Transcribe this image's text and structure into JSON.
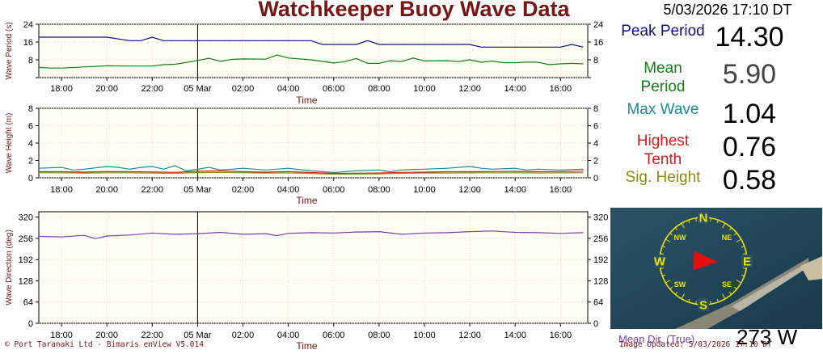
{
  "title": "Watchkeeper Buoy Wave Data",
  "timestamp": "5/03/2026 17:10 DT",
  "readouts": [
    {
      "label": "Peak Period",
      "value": "14.30",
      "color": "#10107a",
      "value_color": "#000000"
    },
    {
      "label": "Mean Period",
      "value": "5.90",
      "color": "#128012",
      "value_color": "#444444"
    },
    {
      "label": "Max Wave",
      "value": "1.04",
      "color": "#1a8c96",
      "value_color": "#000000"
    },
    {
      "label": "Highest Tenth",
      "value": "0.76",
      "color": "#e01818",
      "value_color": "#000000"
    },
    {
      "label": "Sig. Height",
      "value": "0.58",
      "color": "#8a8a16",
      "value_color": "#000000"
    }
  ],
  "compass": {
    "labels": [
      "N",
      "NE",
      "E",
      "SE",
      "S",
      "SW",
      "W",
      "NW"
    ],
    "mean_dir_label": "Mean Dir. (True)",
    "mean_dir_value": "273 W",
    "direction_deg": 273
  },
  "footer": {
    "left": "© Port Taranaki Ltd - Bimaris enView V5.014",
    "right": "Image Updated: 5/03/2026 17:10 DT"
  },
  "colors": {
    "title": "#7b1414",
    "axis_label": "#7b1414",
    "plot_bg": "#fffff4",
    "peak": "#10107a",
    "mean": "#128012",
    "max": "#1a8c96",
    "tenth": "#e01818",
    "sig": "#8a8a16",
    "direction": "#7a3fa8",
    "compass_ring": "#f0e000",
    "compass_arrow": "#e01010"
  },
  "chart_data": [
    {
      "type": "line",
      "ylabel": "Wave Period (s)",
      "xlabel": "Time",
      "ylim": [
        0,
        24
      ],
      "yticks": [
        0,
        8,
        16,
        24
      ],
      "yticks_labeled": [
        8,
        16,
        24
      ],
      "xlim": [
        -7.0,
        17.2
      ],
      "x_ticks": [
        -6,
        -4,
        -2,
        0,
        2,
        4,
        6,
        8,
        10,
        12,
        14,
        16
      ],
      "x_tick_labels": [
        "18:00",
        "20:00",
        "22:00",
        "05 Mar",
        "02:00",
        "04:00",
        "06:00",
        "08:00",
        "10:00",
        "12:00",
        "14:00",
        "16:00"
      ],
      "series": [
        {
          "key": "peak",
          "x": [
            -7,
            -6,
            -5,
            -4,
            -3,
            -2.5,
            -2,
            -1.5,
            -1,
            0,
            1,
            2,
            3,
            4,
            5,
            5.5,
            6,
            7,
            7.5,
            8,
            9,
            10,
            11,
            12,
            12.5,
            13,
            14,
            15,
            16,
            16.5,
            17
          ],
          "values": [
            18.2,
            18.2,
            18.2,
            18.2,
            16.6,
            16.6,
            18.2,
            16.6,
            16.6,
            16.6,
            16.6,
            16.6,
            16.6,
            16.6,
            16.6,
            14.9,
            14.9,
            14.9,
            16.6,
            14.9,
            14.9,
            14.9,
            14.9,
            14.9,
            13.7,
            13.7,
            13.7,
            13.7,
            13.7,
            14.9,
            13.7
          ]
        },
        {
          "key": "mean",
          "x": [
            -7,
            -6.5,
            -6,
            -5,
            -4,
            -3,
            -2,
            -1.5,
            -1,
            -0.5,
            0,
            0.5,
            1,
            1.5,
            2,
            3,
            3.5,
            4,
            5,
            6,
            6.5,
            7,
            7.5,
            8,
            8.5,
            9,
            9.5,
            10,
            11,
            11.5,
            12,
            12.5,
            13,
            13.5,
            14,
            14.5,
            15,
            15.5,
            16,
            16.5,
            17
          ],
          "values": [
            4.6,
            4.3,
            4.3,
            4.8,
            5.3,
            5.2,
            5.2,
            5.8,
            6.0,
            6.8,
            7.7,
            8.7,
            7.3,
            8.2,
            8.4,
            8.3,
            10.2,
            8.8,
            8.0,
            6.6,
            7.2,
            8.6,
            6.4,
            6.4,
            7.6,
            7.2,
            8.8,
            7.5,
            7.6,
            7.2,
            8.0,
            6.9,
            7.4,
            6.7,
            6.7,
            7.0,
            6.9,
            5.8,
            6.2,
            6.4,
            6.2
          ]
        }
      ]
    },
    {
      "type": "line",
      "ylabel": "Wave Height (m)",
      "xlabel": "Time",
      "ylim": [
        0,
        8
      ],
      "yticks": [
        0,
        2,
        4,
        6,
        8
      ],
      "xlim": [
        -7.0,
        17.2
      ],
      "x_ticks": [
        -6,
        -4,
        -2,
        0,
        2,
        4,
        6,
        8,
        10,
        12,
        14,
        16
      ],
      "x_tick_labels": [
        "18:00",
        "20:00",
        "22:00",
        "05 Mar",
        "02:00",
        "04:00",
        "06:00",
        "08:00",
        "10:00",
        "12:00",
        "14:00",
        "16:00"
      ],
      "series": [
        {
          "key": "max",
          "x": [
            -7,
            -6,
            -5.5,
            -5,
            -4,
            -3.5,
            -3,
            -2.5,
            -2,
            -1.5,
            -1,
            -0.5,
            0,
            0.5,
            1,
            1.5,
            2,
            3,
            4,
            5,
            6,
            7,
            8,
            8.5,
            9,
            10,
            11,
            12,
            12.5,
            13,
            14,
            14.5,
            15,
            16,
            17
          ],
          "values": [
            1.1,
            1.2,
            0.9,
            1.0,
            1.3,
            1.2,
            1.0,
            1.2,
            1.3,
            1.0,
            1.4,
            0.8,
            1.0,
            1.2,
            0.9,
            1.0,
            1.1,
            0.9,
            1.1,
            0.8,
            0.6,
            0.8,
            0.9,
            0.7,
            0.9,
            1.0,
            1.1,
            1.3,
            1.1,
            1.0,
            1.1,
            0.9,
            1.0,
            0.9,
            1.0
          ]
        },
        {
          "key": "tenth",
          "x": [
            -7,
            -6,
            -5,
            -4,
            -3,
            -2,
            -1,
            0,
            1,
            2,
            3,
            4,
            5,
            6,
            7,
            8,
            9,
            10,
            11,
            12,
            13,
            14,
            15,
            16,
            17
          ],
          "values": [
            0.7,
            0.7,
            0.65,
            0.72,
            0.7,
            0.68,
            0.62,
            0.75,
            0.8,
            0.7,
            0.65,
            0.72,
            0.6,
            0.5,
            0.52,
            0.55,
            0.62,
            0.65,
            0.7,
            0.7,
            0.72,
            0.74,
            0.7,
            0.72,
            0.76
          ]
        },
        {
          "key": "sig",
          "x": [
            -7,
            -6,
            -5,
            -4,
            -3,
            -2,
            -1,
            0,
            1,
            2,
            3,
            4,
            5,
            6,
            7,
            8,
            9,
            10,
            11,
            12,
            13,
            14,
            15,
            16,
            17
          ],
          "values": [
            0.58,
            0.58,
            0.55,
            0.58,
            0.58,
            0.55,
            0.52,
            0.6,
            0.62,
            0.58,
            0.55,
            0.57,
            0.5,
            0.42,
            0.44,
            0.46,
            0.52,
            0.55,
            0.55,
            0.57,
            0.58,
            0.58,
            0.56,
            0.57,
            0.58
          ]
        }
      ]
    },
    {
      "type": "line",
      "ylabel": "Wave Direction (deg)",
      "xlabel": "Time",
      "ylim": [
        0,
        336
      ],
      "yticks": [
        0,
        64,
        128,
        192,
        256,
        320
      ],
      "xlim": [
        -7.0,
        17.2
      ],
      "x_ticks": [
        -6,
        -4,
        -2,
        0,
        2,
        4,
        6,
        8,
        10,
        12,
        14,
        16
      ],
      "x_tick_labels": [
        "18:00",
        "20:00",
        "22:00",
        "05 Mar",
        "02:00",
        "04:00",
        "06:00",
        "08:00",
        "10:00",
        "12:00",
        "14:00",
        "16:00"
      ],
      "series": [
        {
          "key": "direction",
          "x": [
            -7,
            -6,
            -5,
            -4.5,
            -4,
            -3,
            -2,
            -1,
            0,
            1,
            2,
            3,
            3.5,
            4,
            5,
            6,
            7,
            8,
            9,
            10,
            11,
            12,
            13,
            14,
            15,
            16,
            17
          ],
          "values": [
            262,
            260,
            265,
            255,
            263,
            266,
            272,
            268,
            270,
            274,
            268,
            270,
            264,
            271,
            273,
            272,
            275,
            276,
            268,
            272,
            273,
            276,
            278,
            274,
            273,
            271,
            273
          ]
        }
      ]
    }
  ]
}
